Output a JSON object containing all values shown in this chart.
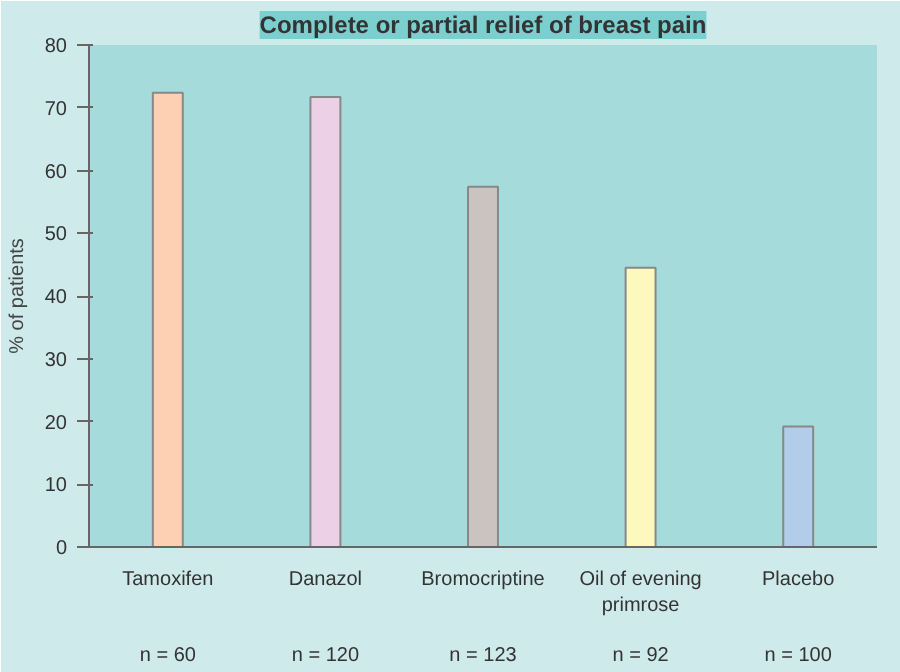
{
  "chart_data": {
    "type": "bar",
    "title": "Complete or partial relief of breast pain",
    "ylabel": "% of patients",
    "categories": [
      "Tamoxifen",
      "Danazol",
      "Bromocriptine",
      "Oil of evening primrose",
      "Placebo"
    ],
    "values": [
      72.4,
      71.7,
      57.4,
      44.5,
      19.2
    ],
    "colors": [
      "#fdd0b4",
      "#ecd0e6",
      "#cbc3c0",
      "#fdf8bd",
      "#b2cdea"
    ],
    "ylim": [
      0,
      80
    ],
    "yticks": [
      0,
      10,
      20,
      30,
      40,
      50,
      60,
      70,
      80
    ],
    "grid": false,
    "annotations": [
      "n = 60",
      "n = 120",
      "n = 123",
      "n = 92",
      "n = 100"
    ]
  }
}
